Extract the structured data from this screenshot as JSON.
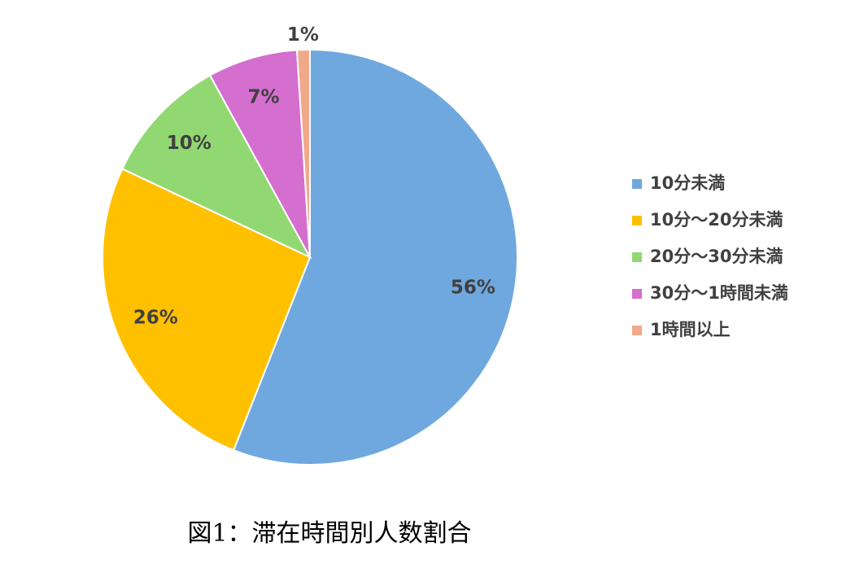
{
  "chart_data": {
    "type": "pie",
    "title": "図1：滞在時間別人数割合",
    "categories": [
      "10分未満",
      "10分～20分未満",
      "20分～30分未満",
      "30分～1時間未満",
      "1時間以上"
    ],
    "values": [
      56,
      26,
      10,
      7,
      1
    ],
    "value_labels": [
      "56%",
      "26%",
      "10%",
      "7%",
      "1%"
    ],
    "colors": [
      "#6fa8de",
      "#ffc000",
      "#92d872",
      "#d46ecf",
      "#f2a88a"
    ],
    "legend": "right"
  }
}
